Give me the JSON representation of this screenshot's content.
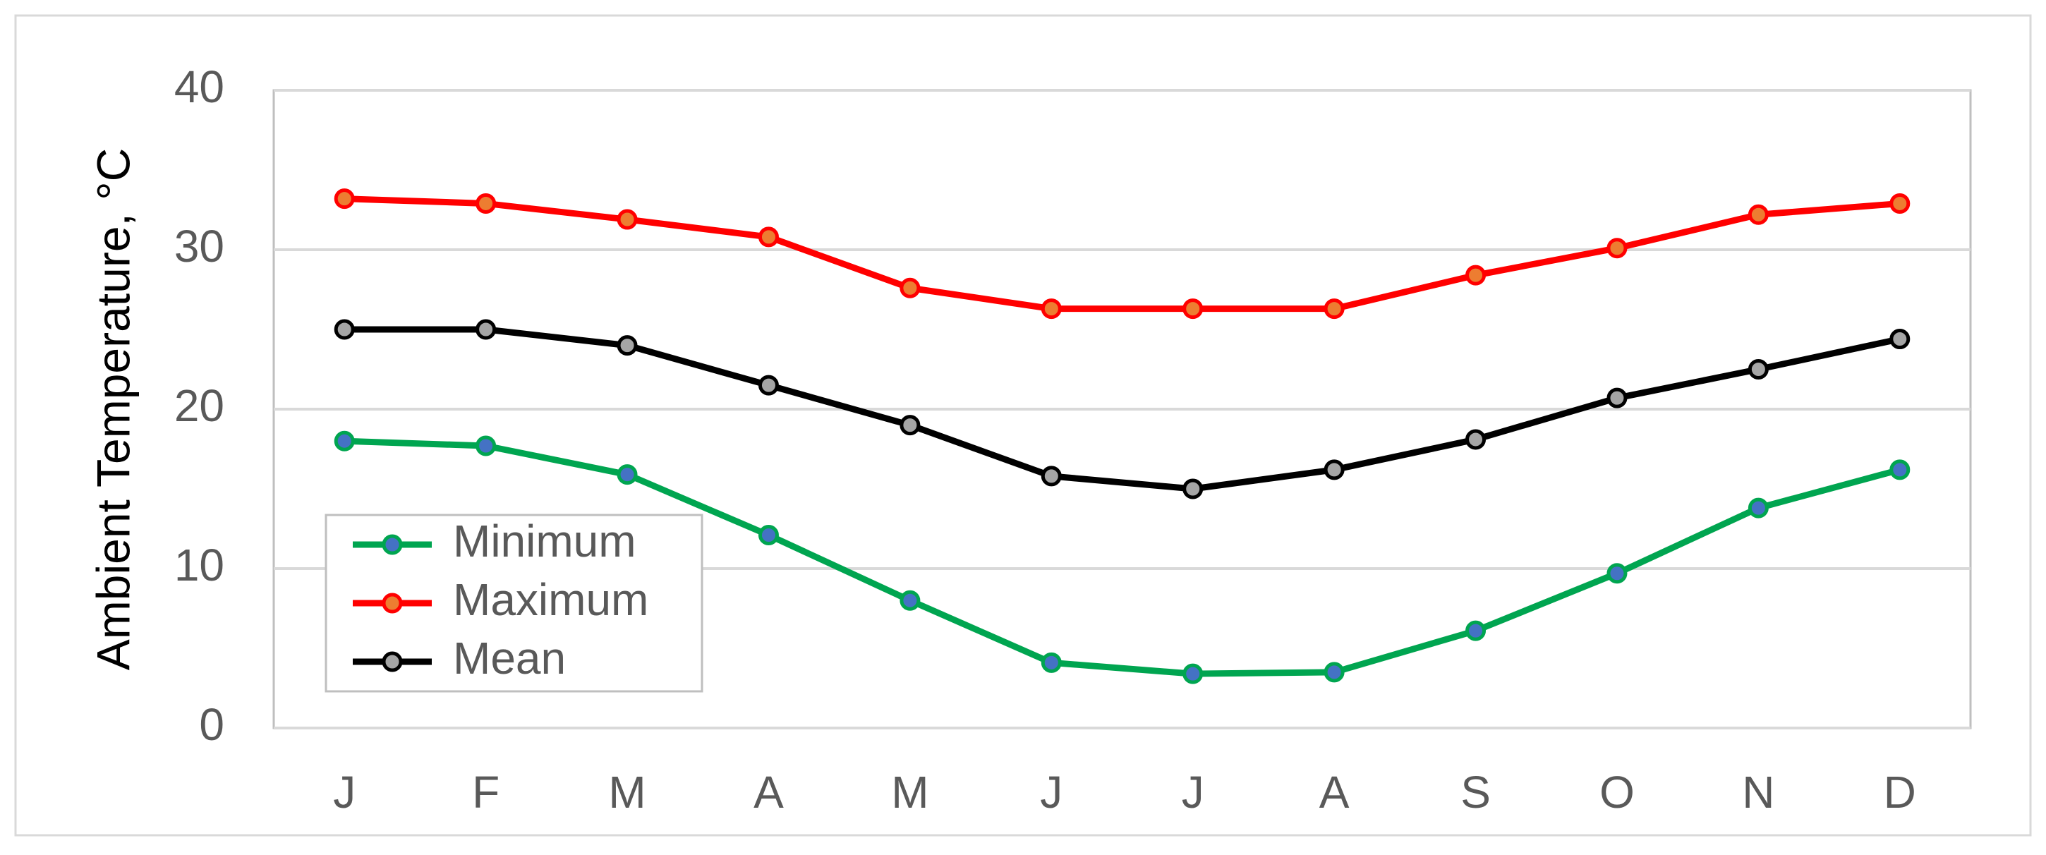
{
  "chart_data": {
    "type": "line",
    "y_label": "Ambient Temperature, °C",
    "categories": [
      "J",
      "F",
      "M",
      "A",
      "M",
      "J",
      "J",
      "A",
      "S",
      "O",
      "N",
      "D"
    ],
    "series": [
      {
        "name": "Minimum",
        "color": "#00a550",
        "marker_color": "#4472c4",
        "values": [
          18.0,
          17.7,
          15.9,
          12.1,
          8.0,
          4.1,
          3.4,
          3.5,
          6.1,
          9.7,
          13.8,
          16.2
        ]
      },
      {
        "name": "Maximum",
        "color": "#ff0000",
        "marker_color": "#ed7d31",
        "values": [
          33.2,
          32.9,
          31.9,
          30.8,
          27.6,
          26.3,
          26.3,
          26.3,
          28.4,
          30.1,
          32.2,
          32.9
        ]
      },
      {
        "name": "Mean",
        "color": "#000000",
        "marker_color": "#a5a5a5",
        "values": [
          25.0,
          25.0,
          24.0,
          21.5,
          19.0,
          15.8,
          15.0,
          16.2,
          18.1,
          20.7,
          22.5,
          24.4
        ]
      }
    ],
    "ylim": [
      0,
      40
    ],
    "yticks": [
      0,
      10,
      20,
      30,
      40
    ],
    "grid": true,
    "legend": "lower left"
  }
}
